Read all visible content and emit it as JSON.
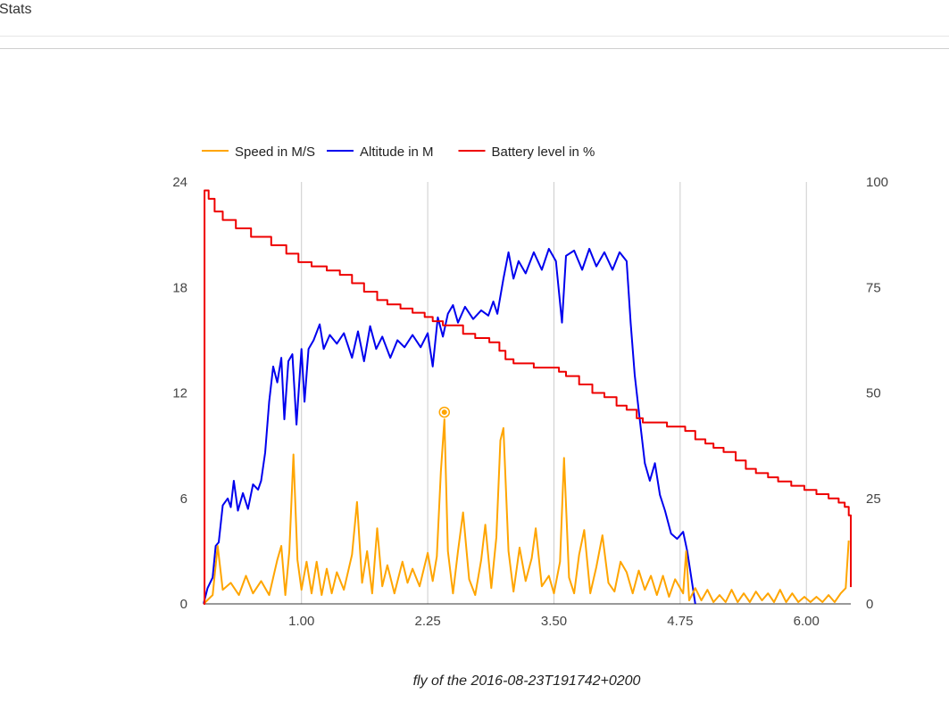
{
  "page": {
    "title": "Stats"
  },
  "caption": "fly of the 2016-08-23T191742+0200",
  "chart_data": {
    "type": "line",
    "title": "",
    "xlabel": "",
    "ylabel": "",
    "x_ticks": [
      "1.00",
      "2.25",
      "3.50",
      "4.75",
      "6.00"
    ],
    "xlim": [
      0.03,
      6.44
    ],
    "left_axis": {
      "ylim": [
        0,
        24
      ],
      "ticks": [
        "0",
        "6",
        "12",
        "18",
        "24"
      ]
    },
    "right_axis": {
      "ylim": [
        0,
        100
      ],
      "ticks": [
        "0",
        "25",
        "50",
        "75",
        "100"
      ]
    },
    "grid": true,
    "legend_position": "top-left",
    "series": [
      {
        "name": "Speed in M/S",
        "axis": "left",
        "color": "#ffa500",
        "points": [
          [
            0.03,
            0
          ],
          [
            0.12,
            0.5
          ],
          [
            0.17,
            3.3
          ],
          [
            0.22,
            0.8
          ],
          [
            0.3,
            1.2
          ],
          [
            0.38,
            0.5
          ],
          [
            0.45,
            1.6
          ],
          [
            0.52,
            0.6
          ],
          [
            0.6,
            1.3
          ],
          [
            0.68,
            0.5
          ],
          [
            0.76,
            2.5
          ],
          [
            0.8,
            3.3
          ],
          [
            0.84,
            0.5
          ],
          [
            0.88,
            3.0
          ],
          [
            0.92,
            8.5
          ],
          [
            0.96,
            2.5
          ],
          [
            1.0,
            0.8
          ],
          [
            1.05,
            2.4
          ],
          [
            1.1,
            0.6
          ],
          [
            1.15,
            2.4
          ],
          [
            1.2,
            0.5
          ],
          [
            1.25,
            2.0
          ],
          [
            1.3,
            0.6
          ],
          [
            1.35,
            1.8
          ],
          [
            1.42,
            0.8
          ],
          [
            1.5,
            2.8
          ],
          [
            1.55,
            5.8
          ],
          [
            1.6,
            1.2
          ],
          [
            1.65,
            3.0
          ],
          [
            1.7,
            0.6
          ],
          [
            1.75,
            4.3
          ],
          [
            1.8,
            1.0
          ],
          [
            1.85,
            2.2
          ],
          [
            1.92,
            0.6
          ],
          [
            2.0,
            2.4
          ],
          [
            2.05,
            1.2
          ],
          [
            2.1,
            2.0
          ],
          [
            2.17,
            1.0
          ],
          [
            2.25,
            2.9
          ],
          [
            2.3,
            1.3
          ],
          [
            2.34,
            2.7
          ],
          [
            2.38,
            7.5
          ],
          [
            2.415,
            10.5
          ],
          [
            2.45,
            3.0
          ],
          [
            2.5,
            0.6
          ],
          [
            2.55,
            3.0
          ],
          [
            2.6,
            5.2
          ],
          [
            2.66,
            1.4
          ],
          [
            2.72,
            0.5
          ],
          [
            2.78,
            2.5
          ],
          [
            2.82,
            4.5
          ],
          [
            2.88,
            0.9
          ],
          [
            2.93,
            3.8
          ],
          [
            2.97,
            9.3
          ],
          [
            3.0,
            10.0
          ],
          [
            3.05,
            3.0
          ],
          [
            3.1,
            0.7
          ],
          [
            3.16,
            3.2
          ],
          [
            3.22,
            1.3
          ],
          [
            3.28,
            2.6
          ],
          [
            3.32,
            4.3
          ],
          [
            3.38,
            1.0
          ],
          [
            3.45,
            1.6
          ],
          [
            3.5,
            0.6
          ],
          [
            3.56,
            2.4
          ],
          [
            3.6,
            8.3
          ],
          [
            3.65,
            1.5
          ],
          [
            3.7,
            0.6
          ],
          [
            3.75,
            2.8
          ],
          [
            3.8,
            4.2
          ],
          [
            3.86,
            0.6
          ],
          [
            3.92,
            2.1
          ],
          [
            3.98,
            3.9
          ],
          [
            4.04,
            1.2
          ],
          [
            4.1,
            0.7
          ],
          [
            4.16,
            2.4
          ],
          [
            4.22,
            1.8
          ],
          [
            4.28,
            0.6
          ],
          [
            4.34,
            1.9
          ],
          [
            4.4,
            0.8
          ],
          [
            4.46,
            1.6
          ],
          [
            4.52,
            0.5
          ],
          [
            4.58,
            1.6
          ],
          [
            4.64,
            0.4
          ],
          [
            4.7,
            1.4
          ],
          [
            4.74,
            1.0
          ],
          [
            4.78,
            0.6
          ],
          [
            4.81,
            3.0
          ],
          [
            4.84,
            0.2
          ],
          [
            4.9,
            0.9
          ],
          [
            4.96,
            0.2
          ],
          [
            5.02,
            0.8
          ],
          [
            5.08,
            0.1
          ],
          [
            5.14,
            0.5
          ],
          [
            5.2,
            0.1
          ],
          [
            5.26,
            0.8
          ],
          [
            5.32,
            0.1
          ],
          [
            5.38,
            0.6
          ],
          [
            5.44,
            0.1
          ],
          [
            5.5,
            0.7
          ],
          [
            5.56,
            0.2
          ],
          [
            5.62,
            0.6
          ],
          [
            5.68,
            0.1
          ],
          [
            5.74,
            0.8
          ],
          [
            5.8,
            0.1
          ],
          [
            5.86,
            0.6
          ],
          [
            5.92,
            0.1
          ],
          [
            5.98,
            0.4
          ],
          [
            6.04,
            0.1
          ],
          [
            6.1,
            0.4
          ],
          [
            6.16,
            0.1
          ],
          [
            6.22,
            0.5
          ],
          [
            6.28,
            0.1
          ],
          [
            6.34,
            0.6
          ],
          [
            6.39,
            0.9
          ],
          [
            6.42,
            3.6
          ]
        ]
      },
      {
        "name": "Altitude in M",
        "axis": "left",
        "color": "#0000ee",
        "points": [
          [
            0.03,
            0
          ],
          [
            0.07,
            0.9
          ],
          [
            0.12,
            1.5
          ],
          [
            0.15,
            3.3
          ],
          [
            0.18,
            3.5
          ],
          [
            0.22,
            5.6
          ],
          [
            0.27,
            6.0
          ],
          [
            0.3,
            5.5
          ],
          [
            0.33,
            7.0
          ],
          [
            0.37,
            5.3
          ],
          [
            0.42,
            6.3
          ],
          [
            0.47,
            5.4
          ],
          [
            0.52,
            6.8
          ],
          [
            0.57,
            6.5
          ],
          [
            0.6,
            7.0
          ],
          [
            0.64,
            8.6
          ],
          [
            0.68,
            11.5
          ],
          [
            0.72,
            13.5
          ],
          [
            0.76,
            12.6
          ],
          [
            0.8,
            14.0
          ],
          [
            0.83,
            10.5
          ],
          [
            0.87,
            13.8
          ],
          [
            0.91,
            14.2
          ],
          [
            0.95,
            10.2
          ],
          [
            1.0,
            14.5
          ],
          [
            1.03,
            11.5
          ],
          [
            1.07,
            14.5
          ],
          [
            1.12,
            15.0
          ],
          [
            1.18,
            15.9
          ],
          [
            1.22,
            14.5
          ],
          [
            1.28,
            15.3
          ],
          [
            1.35,
            14.8
          ],
          [
            1.42,
            15.4
          ],
          [
            1.5,
            14.0
          ],
          [
            1.56,
            15.5
          ],
          [
            1.62,
            13.8
          ],
          [
            1.68,
            15.8
          ],
          [
            1.74,
            14.5
          ],
          [
            1.8,
            15.2
          ],
          [
            1.88,
            14.0
          ],
          [
            1.95,
            15.0
          ],
          [
            2.02,
            14.6
          ],
          [
            2.1,
            15.3
          ],
          [
            2.18,
            14.6
          ],
          [
            2.25,
            15.4
          ],
          [
            2.3,
            13.5
          ],
          [
            2.35,
            16.3
          ],
          [
            2.4,
            15.2
          ],
          [
            2.45,
            16.5
          ],
          [
            2.5,
            17.0
          ],
          [
            2.55,
            16.0
          ],
          [
            2.62,
            16.9
          ],
          [
            2.7,
            16.2
          ],
          [
            2.78,
            16.7
          ],
          [
            2.85,
            16.4
          ],
          [
            2.9,
            17.2
          ],
          [
            2.94,
            16.5
          ],
          [
            3.0,
            18.5
          ],
          [
            3.05,
            20.0
          ],
          [
            3.1,
            18.5
          ],
          [
            3.15,
            19.5
          ],
          [
            3.22,
            18.8
          ],
          [
            3.3,
            20.0
          ],
          [
            3.38,
            19.0
          ],
          [
            3.45,
            20.2
          ],
          [
            3.52,
            19.5
          ],
          [
            3.58,
            16.0
          ],
          [
            3.62,
            19.8
          ],
          [
            3.7,
            20.1
          ],
          [
            3.78,
            19.0
          ],
          [
            3.85,
            20.2
          ],
          [
            3.92,
            19.2
          ],
          [
            4.0,
            20.0
          ],
          [
            4.08,
            19.0
          ],
          [
            4.15,
            20.0
          ],
          [
            4.22,
            19.5
          ],
          [
            4.26,
            16.0
          ],
          [
            4.3,
            13.0
          ],
          [
            4.35,
            10.5
          ],
          [
            4.4,
            8.0
          ],
          [
            4.45,
            7.0
          ],
          [
            4.5,
            8.0
          ],
          [
            4.55,
            6.2
          ],
          [
            4.6,
            5.3
          ],
          [
            4.66,
            4.0
          ],
          [
            4.72,
            3.7
          ],
          [
            4.78,
            4.1
          ],
          [
            4.82,
            3.0
          ],
          [
            4.86,
            1.5
          ],
          [
            4.9,
            0
          ]
        ]
      },
      {
        "name": "Battery level in %",
        "axis": "right",
        "color": "#ee0000",
        "points": [
          [
            0.03,
            0
          ],
          [
            0.04,
            98
          ],
          [
            0.08,
            96
          ],
          [
            0.14,
            93
          ],
          [
            0.22,
            91
          ],
          [
            0.35,
            89
          ],
          [
            0.5,
            87
          ],
          [
            0.7,
            85
          ],
          [
            0.85,
            83
          ],
          [
            0.97,
            81
          ],
          [
            1.1,
            80
          ],
          [
            1.25,
            79
          ],
          [
            1.38,
            78
          ],
          [
            1.5,
            76
          ],
          [
            1.62,
            74
          ],
          [
            1.75,
            72
          ],
          [
            1.85,
            71
          ],
          [
            1.98,
            70
          ],
          [
            2.1,
            69
          ],
          [
            2.22,
            68
          ],
          [
            2.3,
            67
          ],
          [
            2.4,
            66
          ],
          [
            2.6,
            64
          ],
          [
            2.72,
            63
          ],
          [
            2.86,
            62
          ],
          [
            2.96,
            60
          ],
          [
            3.02,
            58
          ],
          [
            3.1,
            57
          ],
          [
            3.3,
            56
          ],
          [
            3.45,
            56
          ],
          [
            3.55,
            55
          ],
          [
            3.62,
            54
          ],
          [
            3.75,
            52
          ],
          [
            3.88,
            50
          ],
          [
            4.0,
            49
          ],
          [
            4.12,
            47
          ],
          [
            4.22,
            46
          ],
          [
            4.32,
            44
          ],
          [
            4.38,
            43
          ],
          [
            4.5,
            43
          ],
          [
            4.62,
            42
          ],
          [
            4.8,
            41
          ],
          [
            4.9,
            39
          ],
          [
            5.0,
            38
          ],
          [
            5.08,
            37
          ],
          [
            5.18,
            36
          ],
          [
            5.3,
            34
          ],
          [
            5.4,
            32
          ],
          [
            5.5,
            31
          ],
          [
            5.62,
            30
          ],
          [
            5.72,
            29
          ],
          [
            5.85,
            28
          ],
          [
            5.98,
            27
          ],
          [
            6.1,
            26
          ],
          [
            6.22,
            25
          ],
          [
            6.32,
            24
          ],
          [
            6.38,
            23
          ],
          [
            6.42,
            21
          ],
          [
            6.44,
            4
          ]
        ]
      }
    ]
  }
}
